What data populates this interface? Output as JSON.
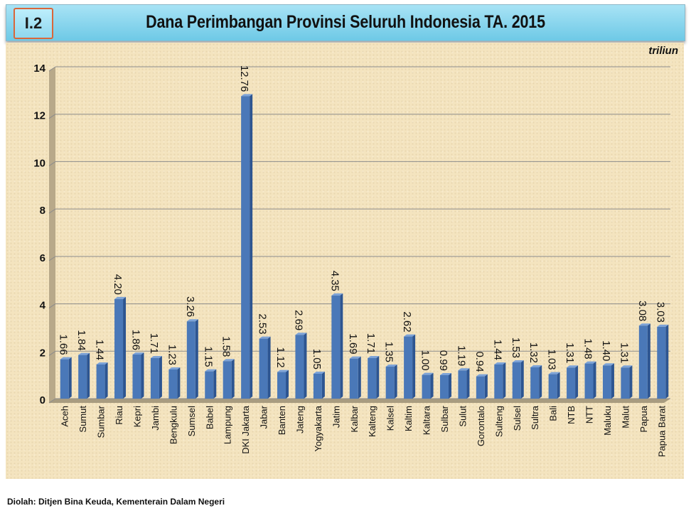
{
  "header": {
    "badge": "I.2",
    "title": "Dana Perimbangan Provinsi Seluruh Indonesia TA. 2015"
  },
  "unit": "triliun",
  "source": "Diolah: Ditjen Bina Keuda, Kementerain Dalam Negeri",
  "colors": {
    "bar": "#4a78b8",
    "bar_dark": "#2d5591",
    "panel": "#f4e4bf",
    "header": "#8fd7ee",
    "badge_border": "#d9663a"
  },
  "chart_data": {
    "type": "bar",
    "title": "Dana Perimbangan Provinsi Seluruh Indonesia TA. 2015",
    "xlabel": "",
    "ylabel": "",
    "ylim": [
      0,
      14
    ],
    "yticks": [
      0,
      2,
      4,
      6,
      8,
      10,
      12,
      14
    ],
    "grid": true,
    "legend": "none",
    "categories": [
      "Aceh",
      "Sumut",
      "Sumbar",
      "Riau",
      "Kepri",
      "Jambi",
      "Bengkulu",
      "Sumsel",
      "Babel",
      "Lampung",
      "DKI Jakarta",
      "Jabar",
      "Banten",
      "Jateng",
      "Yogyakarta",
      "Jatim",
      "Kalbar",
      "Kalteng",
      "Kalsel",
      "Kaltim",
      "Kaltara",
      "Sulbar",
      "Sulut",
      "Gorontalo",
      "Sulteng",
      "Sulsel",
      "Sultra",
      "Bali",
      "NTB",
      "NTT",
      "Maluku",
      "Malut",
      "Papua",
      "Papua Barat"
    ],
    "values": [
      1.66,
      1.84,
      1.44,
      4.2,
      1.86,
      1.71,
      1.23,
      3.26,
      1.15,
      1.58,
      12.76,
      2.53,
      1.12,
      2.69,
      1.05,
      4.35,
      1.69,
      1.71,
      1.35,
      2.62,
      1.0,
      0.99,
      1.19,
      0.94,
      1.44,
      1.53,
      1.32,
      1.03,
      1.31,
      1.48,
      1.4,
      1.31,
      3.08,
      3.03
    ],
    "value_labels": [
      "1.66",
      "1.84",
      "1.44",
      "4.20",
      "1.86",
      "1.71",
      "1.23",
      "3.26",
      "1.15",
      "1.58",
      "12.76",
      "2.53",
      "1.12",
      "2.69",
      "1.05",
      "4.35",
      "1.69",
      "1.71",
      "1.35",
      "2.62",
      "1.00",
      "0.99",
      "1.19",
      "0.94",
      "1.44",
      "1.53",
      "1.32",
      "1.03",
      "1.31",
      "1.48",
      "1.40",
      "1.31",
      "3.08",
      "3.03"
    ]
  }
}
